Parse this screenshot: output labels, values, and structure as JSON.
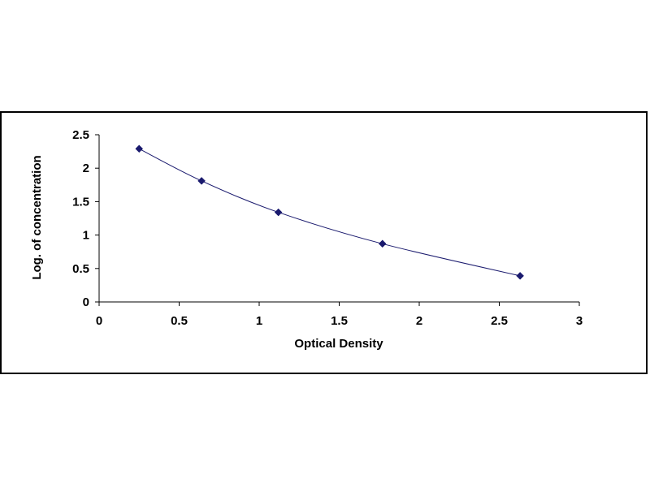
{
  "chart_data": {
    "type": "scatter",
    "xlabel": "Optical Density",
    "ylabel": "Log. of concentration",
    "xlim": [
      0,
      3
    ],
    "ylim": [
      0,
      2.5
    ],
    "x_ticks": [
      "0",
      "0.5",
      "1",
      "1.5",
      "2",
      "2.5",
      "3"
    ],
    "y_ticks": [
      "0",
      "0.5",
      "1",
      "1.5",
      "2",
      "2.5"
    ],
    "grid": false,
    "legend": "none",
    "series": [
      {
        "points": [
          {
            "x": 0.25,
            "y": 2.29
          },
          {
            "x": 0.64,
            "y": 1.81
          },
          {
            "x": 1.12,
            "y": 1.34
          },
          {
            "x": 1.77,
            "y": 0.87
          },
          {
            "x": 2.63,
            "y": 0.39
          }
        ],
        "line": "smooth",
        "marker": "diamond",
        "color": "#1a1a6e"
      }
    ]
  }
}
